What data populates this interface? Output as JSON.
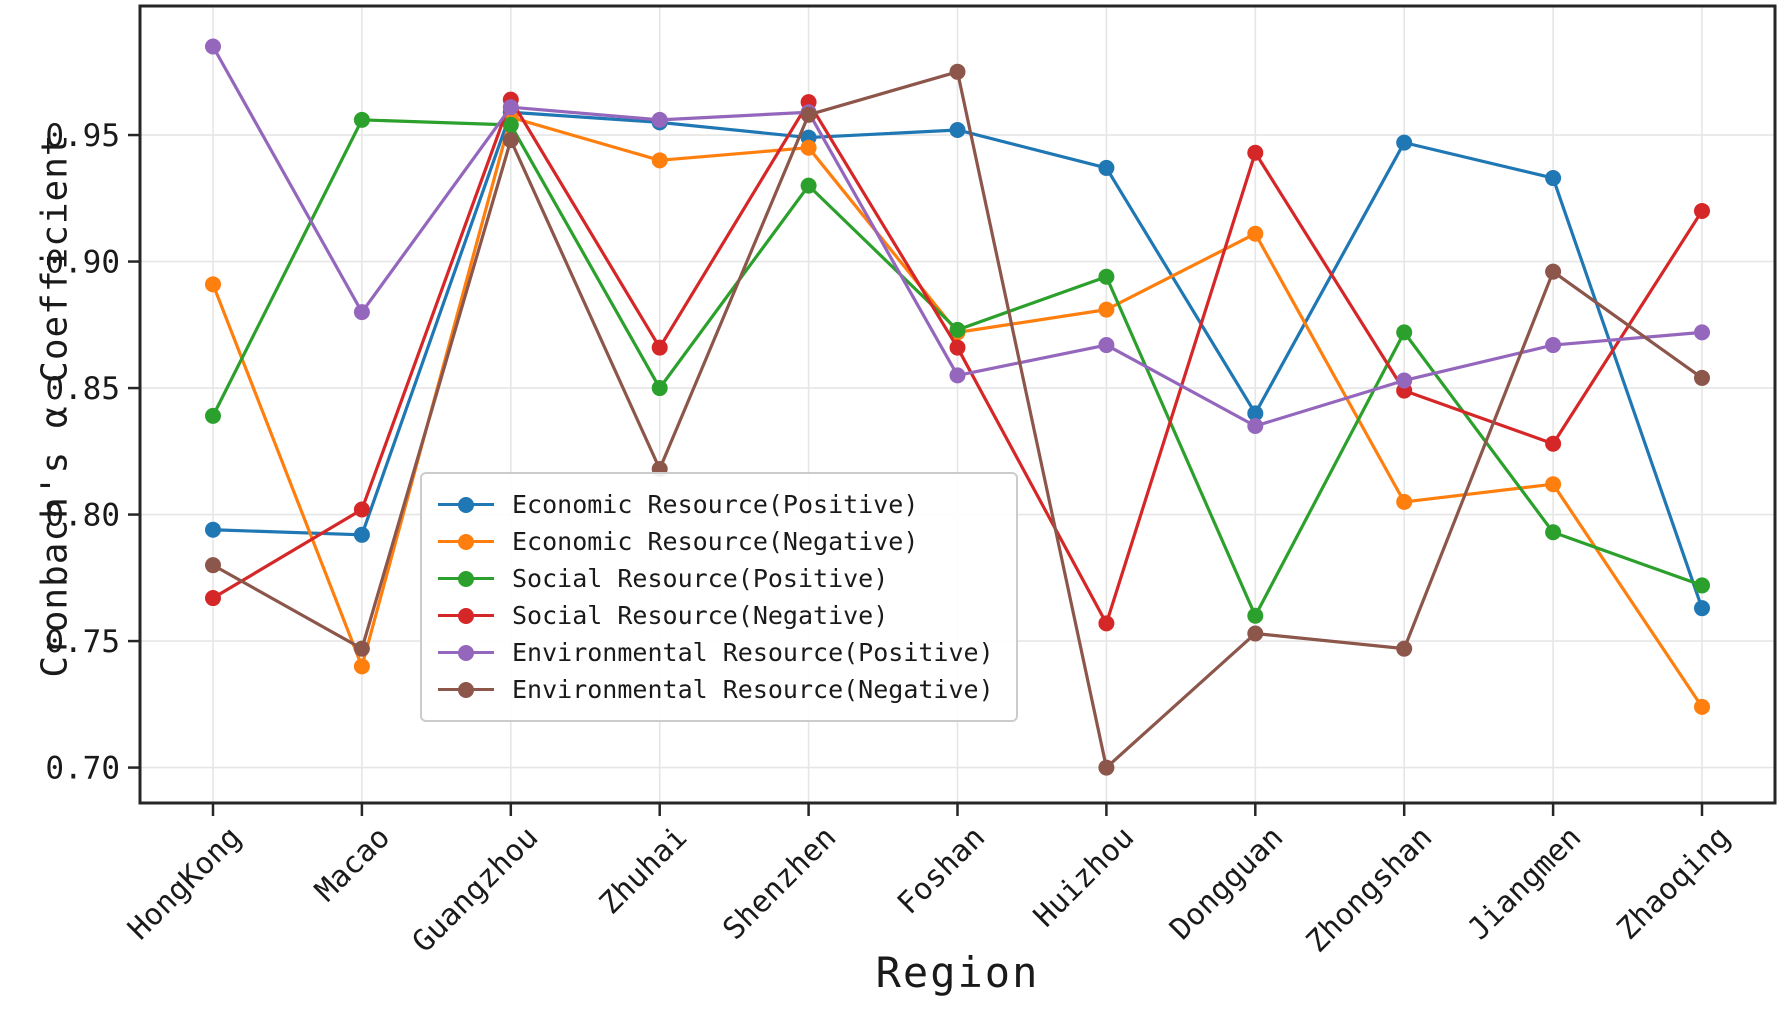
{
  "chart_data": {
    "type": "line",
    "title": "",
    "xlabel": "Region",
    "ylabel": "Cronbach's α Coefficient",
    "categories": [
      "HongKong",
      "Macao",
      "Guangzhou",
      "Zhuhai",
      "Shenzhen",
      "Foshan",
      "Huizhou",
      "Dongguan",
      "Zhongshan",
      "Jiangmen",
      "Zhaoqing"
    ],
    "yticks": [
      "0.70",
      "0.75",
      "0.80",
      "0.85",
      "0.90",
      "0.95"
    ],
    "ylim": [
      0.686,
      1.001
    ],
    "grid": true,
    "legend_position": "inside lower-left",
    "series": [
      {
        "name": "Economic Resource(Positive)",
        "color": "#1f77b4",
        "values": [
          0.794,
          0.792,
          0.959,
          0.955,
          0.949,
          0.952,
          0.937,
          0.84,
          0.947,
          0.933,
          0.763
        ]
      },
      {
        "name": "Economic Resource(Negative)",
        "color": "#ff7f0e",
        "values": [
          0.891,
          0.74,
          0.957,
          0.94,
          0.945,
          0.872,
          0.881,
          0.911,
          0.805,
          0.812,
          0.724
        ]
      },
      {
        "name": "Social Resource(Positive)",
        "color": "#2ca02c",
        "values": [
          0.839,
          0.956,
          0.954,
          0.85,
          0.93,
          0.873,
          0.894,
          0.76,
          0.872,
          0.793,
          0.772
        ]
      },
      {
        "name": "Social Resource(Negative)",
        "color": "#d62728",
        "values": [
          0.767,
          0.802,
          0.964,
          0.866,
          0.963,
          0.866,
          0.757,
          0.943,
          0.849,
          0.828,
          0.92
        ]
      },
      {
        "name": "Environmental Resource(Positive)",
        "color": "#9467bd",
        "values": [
          0.985,
          0.88,
          0.961,
          0.956,
          0.959,
          0.855,
          0.867,
          0.835,
          0.853,
          0.867,
          0.872
        ]
      },
      {
        "name": "Environmental Resource(Negative)",
        "color": "#8c564b",
        "values": [
          0.78,
          0.747,
          0.948,
          0.818,
          0.958,
          0.975,
          0.7,
          0.753,
          0.747,
          0.896,
          0.854
        ]
      }
    ],
    "style": {
      "grid_color": "#e6e6e6",
      "spine_color": "#262626",
      "text_color": "#1a1a1a",
      "background": "#ffffff"
    }
  }
}
